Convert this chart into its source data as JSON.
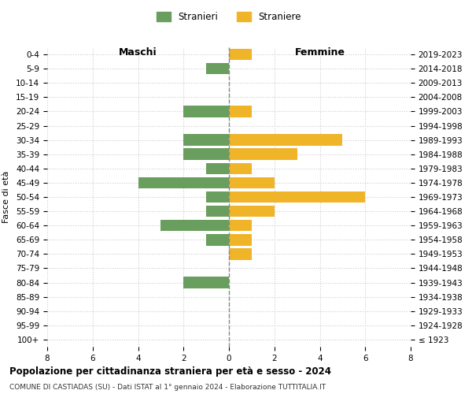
{
  "age_groups": [
    "100+",
    "95-99",
    "90-94",
    "85-89",
    "80-84",
    "75-79",
    "70-74",
    "65-69",
    "60-64",
    "55-59",
    "50-54",
    "45-49",
    "40-44",
    "35-39",
    "30-34",
    "25-29",
    "20-24",
    "15-19",
    "10-14",
    "5-9",
    "0-4"
  ],
  "birth_years": [
    "≤ 1923",
    "1924-1928",
    "1929-1933",
    "1934-1938",
    "1939-1943",
    "1944-1948",
    "1949-1953",
    "1954-1958",
    "1959-1963",
    "1964-1968",
    "1969-1973",
    "1974-1978",
    "1979-1983",
    "1984-1988",
    "1989-1993",
    "1994-1998",
    "1999-2003",
    "2004-2008",
    "2009-2013",
    "2014-2018",
    "2019-2023"
  ],
  "maschi": [
    0,
    0,
    0,
    0,
    2,
    0,
    0,
    1,
    3,
    1,
    1,
    4,
    1,
    2,
    2,
    0,
    2,
    0,
    0,
    1,
    0
  ],
  "femmine": [
    0,
    0,
    0,
    0,
    0,
    0,
    1,
    1,
    1,
    2,
    6,
    2,
    1,
    3,
    5,
    0,
    1,
    0,
    0,
    0,
    1
  ],
  "color_maschi": "#6a9e5e",
  "color_femmine": "#f0b429",
  "xlim": 8,
  "title": "Popolazione per cittadinanza straniera per età e sesso - 2024",
  "subtitle": "COMUNE DI CASTIADAS (SU) - Dati ISTAT al 1° gennaio 2024 - Elaborazione TUTTITALIA.IT",
  "legend_maschi": "Stranieri",
  "legend_femmine": "Straniere",
  "xlabel_left": "Maschi",
  "xlabel_right": "Femmine",
  "ylabel_left": "Fasce di età",
  "background_color": "#ffffff",
  "grid_color": "#cccccc",
  "bar_height": 0.8
}
